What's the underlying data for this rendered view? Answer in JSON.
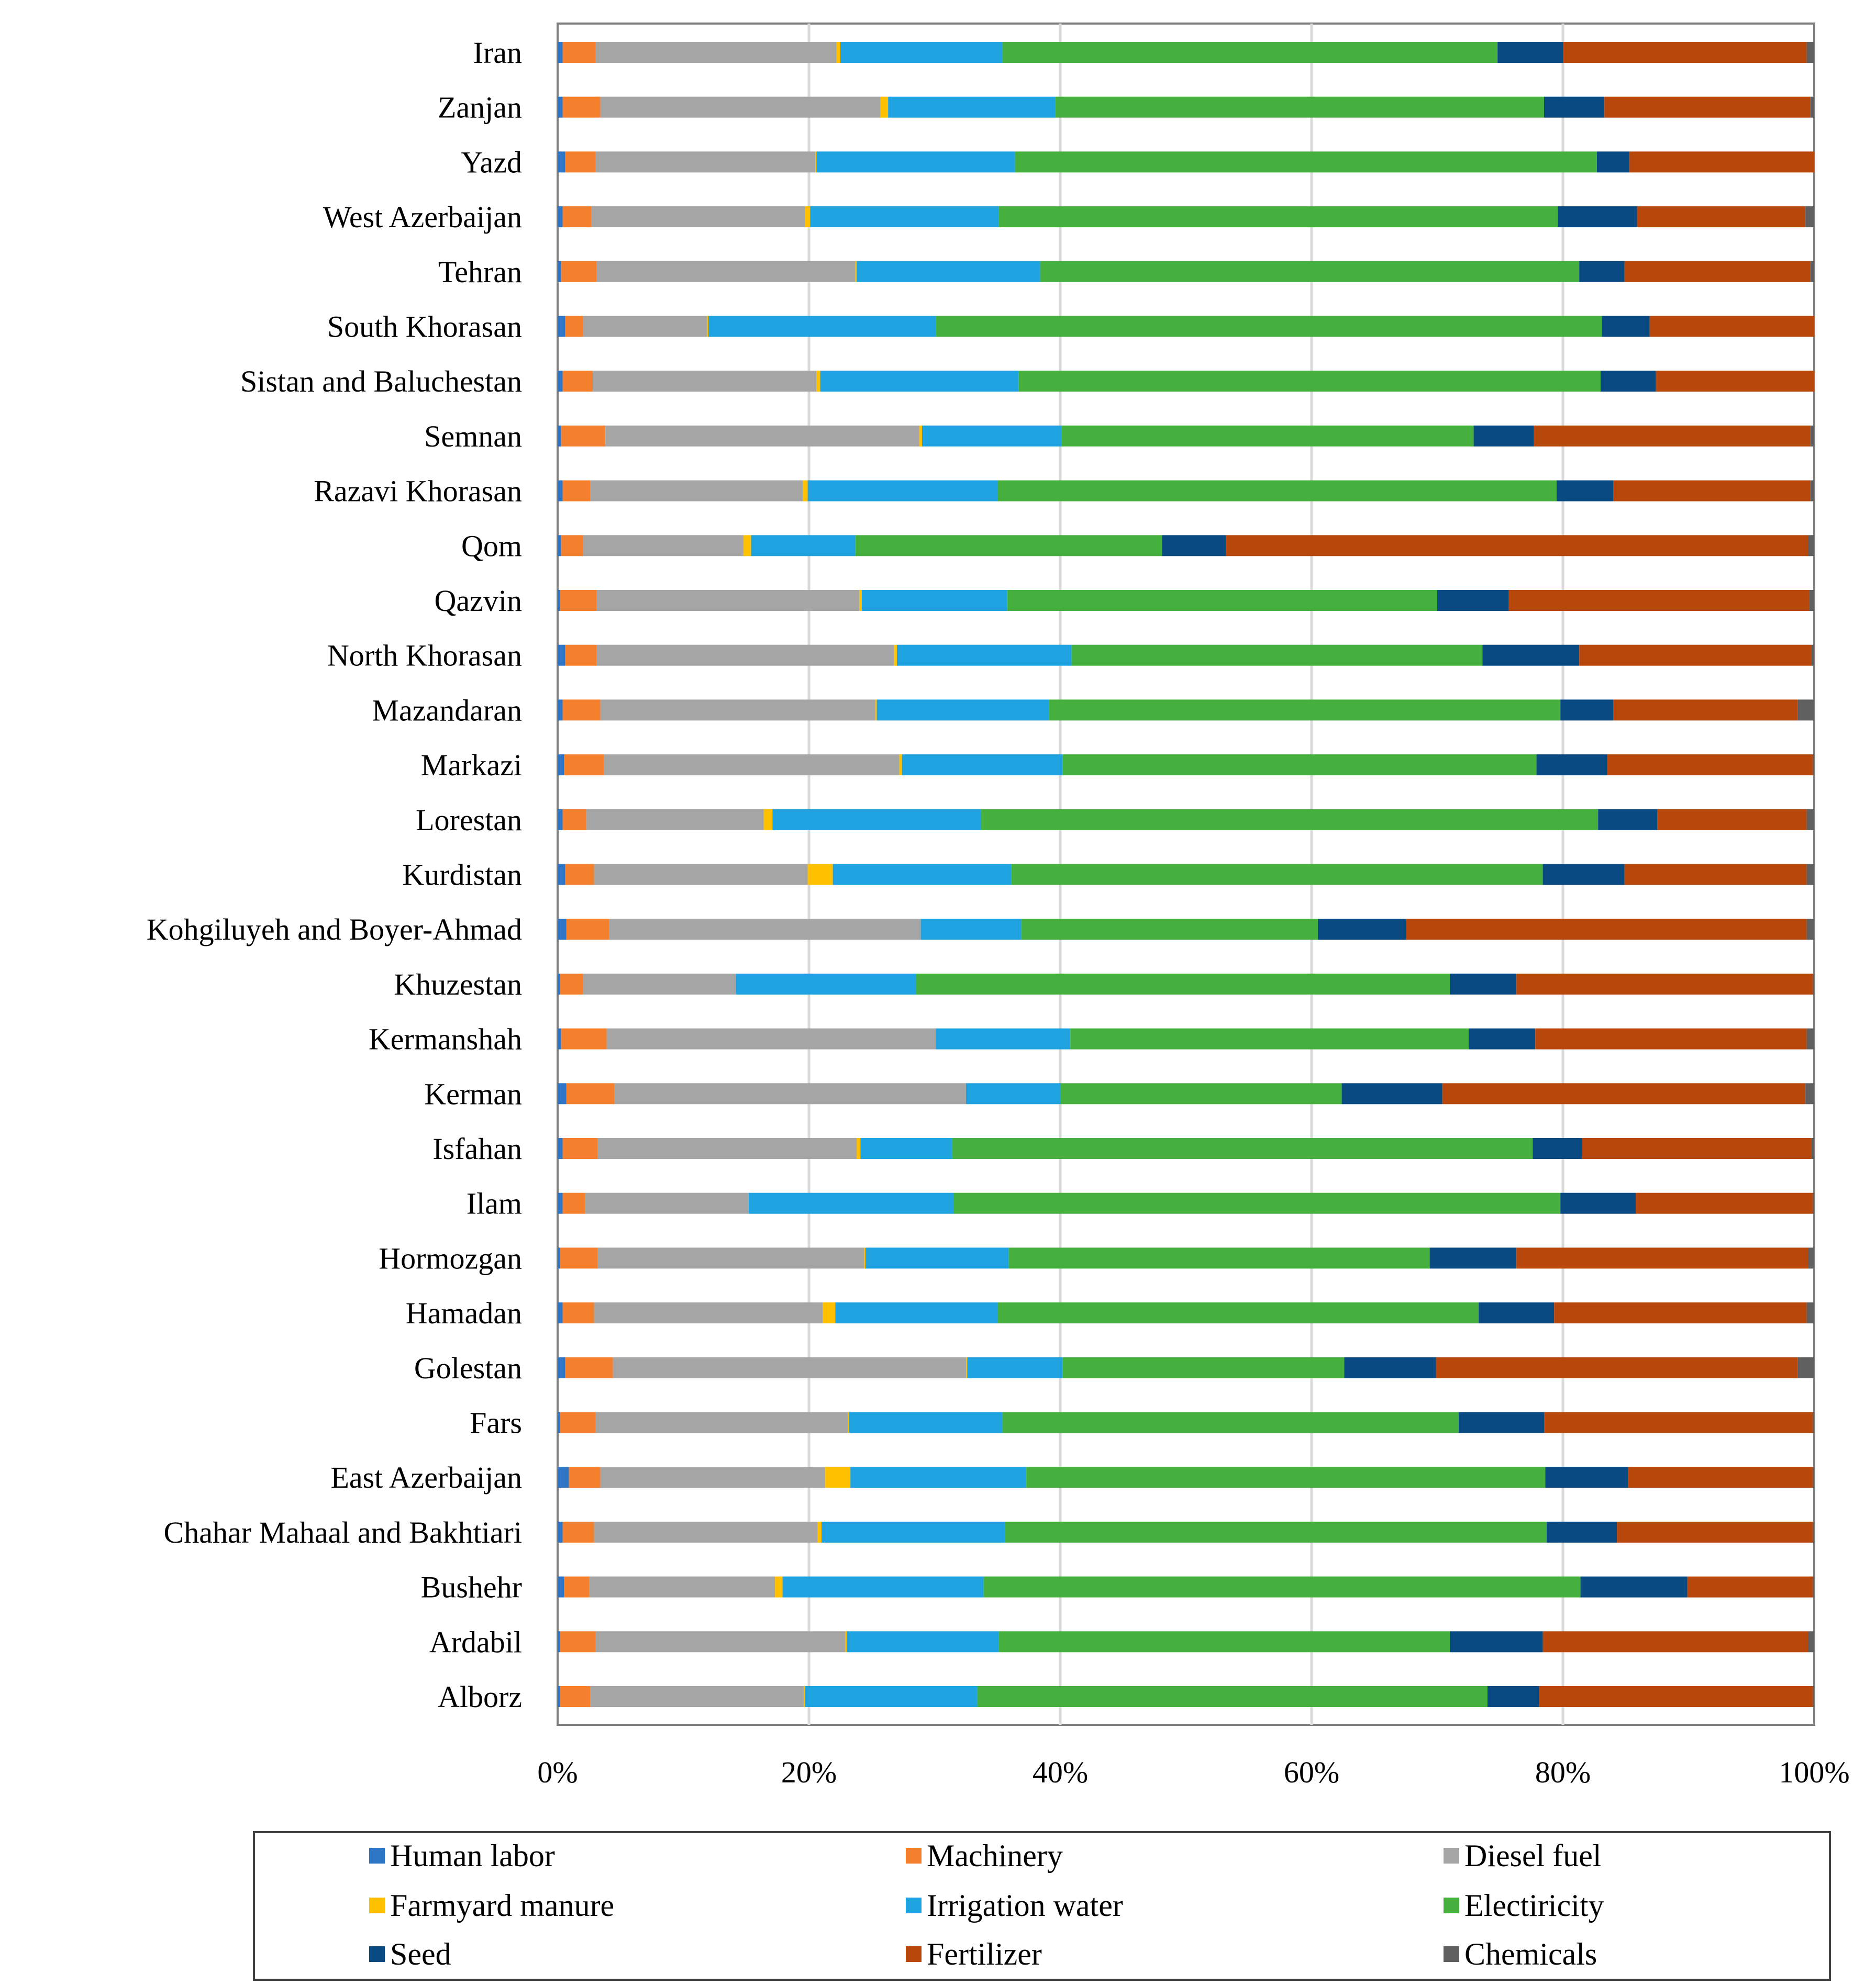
{
  "chart_data": {
    "type": "bar",
    "orientation": "horizontal",
    "stacked": true,
    "normalized": true,
    "title": "",
    "xlabel": "",
    "ylabel": "",
    "xlim": [
      0,
      100
    ],
    "xticks": [
      "0%",
      "20%",
      "40%",
      "60%",
      "80%",
      "100%"
    ],
    "grid": "vertical",
    "legend_position": "bottom",
    "categories": [
      "Iran",
      "Zanjan",
      "Yazd",
      "West Azerbaijan",
      "Tehran",
      "South Khorasan",
      "Sistan and Baluchestan",
      "Semnan",
      "Razavi Khorasan",
      "Qom",
      "Qazvin",
      "North Khorasan",
      "Mazandaran",
      "Markazi",
      "Lorestan",
      "Kurdistan",
      "Kohgiluyeh and Boyer-Ahmad",
      "Khuzestan",
      "Kermanshah",
      "Kerman",
      "Isfahan",
      "Ilam",
      "Hormozgan",
      "Hamadan",
      "Golestan",
      "Fars",
      "East Azerbaijan",
      "Chahar Mahaal and Bakhtiari",
      "Bushehr",
      "Ardabil",
      "Alborz"
    ],
    "series": [
      {
        "name": "Human labor",
        "color": "#2e75c6",
        "values": [
          0.4,
          0.4,
          0.6,
          0.4,
          0.3,
          0.6,
          0.4,
          0.3,
          0.4,
          0.3,
          0.2,
          0.6,
          0.4,
          0.5,
          0.4,
          0.6,
          0.7,
          0.2,
          0.3,
          0.7,
          0.4,
          0.4,
          0.2,
          0.4,
          0.6,
          0.2,
          0.9,
          0.4,
          0.5,
          0.2,
          0.2
        ]
      },
      {
        "name": "Machinery",
        "color": "#f47f2c",
        "values": [
          2.6,
          3.0,
          2.4,
          2.3,
          2.8,
          1.4,
          2.4,
          3.5,
          2.2,
          1.7,
          2.9,
          2.5,
          3.0,
          3.2,
          1.9,
          2.3,
          3.4,
          1.8,
          3.6,
          3.8,
          2.8,
          1.8,
          3.0,
          2.5,
          3.8,
          2.8,
          2.5,
          2.5,
          2.0,
          2.8,
          2.4
        ]
      },
      {
        "name": "Diesel fuel",
        "color": "#a5a5a5",
        "values": [
          19.2,
          22.3,
          17.5,
          17.0,
          20.6,
          9.9,
          17.8,
          25.0,
          16.9,
          12.8,
          20.9,
          23.7,
          21.9,
          23.5,
          14.1,
          17.0,
          24.8,
          12.2,
          26.2,
          28.0,
          20.6,
          13.0,
          21.2,
          18.2,
          28.1,
          20.1,
          17.9,
          17.8,
          14.8,
          19.9,
          17.0
        ]
      },
      {
        "name": "Farmyard manure",
        "color": "#ffc000",
        "values": [
          0.3,
          0.6,
          0.1,
          0.4,
          0.1,
          0.1,
          0.3,
          0.2,
          0.4,
          0.6,
          0.2,
          0.2,
          0.1,
          0.2,
          0.7,
          2.0,
          0.0,
          0.0,
          0.0,
          0.0,
          0.3,
          0.0,
          0.1,
          1.0,
          0.1,
          0.1,
          2.0,
          0.3,
          0.6,
          0.1,
          0.1
        ]
      },
      {
        "name": "Irrigation water",
        "color": "#1ea2e0",
        "values": [
          12.9,
          13.3,
          15.8,
          15.0,
          14.6,
          18.1,
          15.8,
          11.1,
          15.1,
          8.3,
          11.6,
          13.9,
          13.7,
          12.8,
          16.6,
          14.2,
          8.0,
          14.3,
          10.7,
          7.5,
          7.3,
          16.3,
          11.4,
          12.9,
          7.6,
          12.2,
          14.0,
          14.6,
          16.0,
          12.1,
          13.7
        ]
      },
      {
        "name": "Electiricity",
        "color": "#46b03e",
        "values": [
          39.4,
          38.9,
          46.3,
          44.5,
          42.9,
          53.0,
          46.3,
          32.8,
          44.5,
          24.4,
          34.2,
          32.7,
          40.7,
          37.7,
          49.1,
          42.3,
          23.6,
          42.5,
          31.7,
          22.4,
          46.2,
          48.3,
          33.5,
          38.3,
          22.4,
          36.3,
          41.3,
          43.1,
          47.5,
          35.9,
          40.6
        ]
      },
      {
        "name": "Seed",
        "color": "#0a4a83",
        "values": [
          5.2,
          4.8,
          2.6,
          6.3,
          3.6,
          3.8,
          4.4,
          4.8,
          4.5,
          5.1,
          5.7,
          7.7,
          4.2,
          5.6,
          4.7,
          6.5,
          7.0,
          5.3,
          5.3,
          8.0,
          3.9,
          6.0,
          6.9,
          6.0,
          7.3,
          6.8,
          6.6,
          5.6,
          8.5,
          7.4,
          4.1
        ]
      },
      {
        "name": "Fertilizer",
        "color": "#b8470b",
        "values": [
          19.4,
          16.4,
          14.7,
          13.4,
          14.8,
          13.1,
          12.6,
          22.0,
          15.7,
          46.3,
          23.9,
          18.5,
          14.7,
          16.4,
          11.9,
          14.5,
          31.9,
          23.6,
          21.6,
          28.9,
          18.3,
          14.1,
          23.2,
          20.1,
          28.8,
          21.4,
          14.7,
          15.6,
          10.0,
          21.1,
          21.8
        ]
      },
      {
        "name": "Chemicals",
        "color": "#5f5f5f",
        "values": [
          0.6,
          0.3,
          0.0,
          0.7,
          0.3,
          0.0,
          0.0,
          0.3,
          0.3,
          0.5,
          0.4,
          0.2,
          1.3,
          0.1,
          0.6,
          0.6,
          0.6,
          0.1,
          0.6,
          0.7,
          0.2,
          0.1,
          0.5,
          0.6,
          1.3,
          0.1,
          0.1,
          0.1,
          0.1,
          0.5,
          0.1
        ]
      }
    ]
  }
}
